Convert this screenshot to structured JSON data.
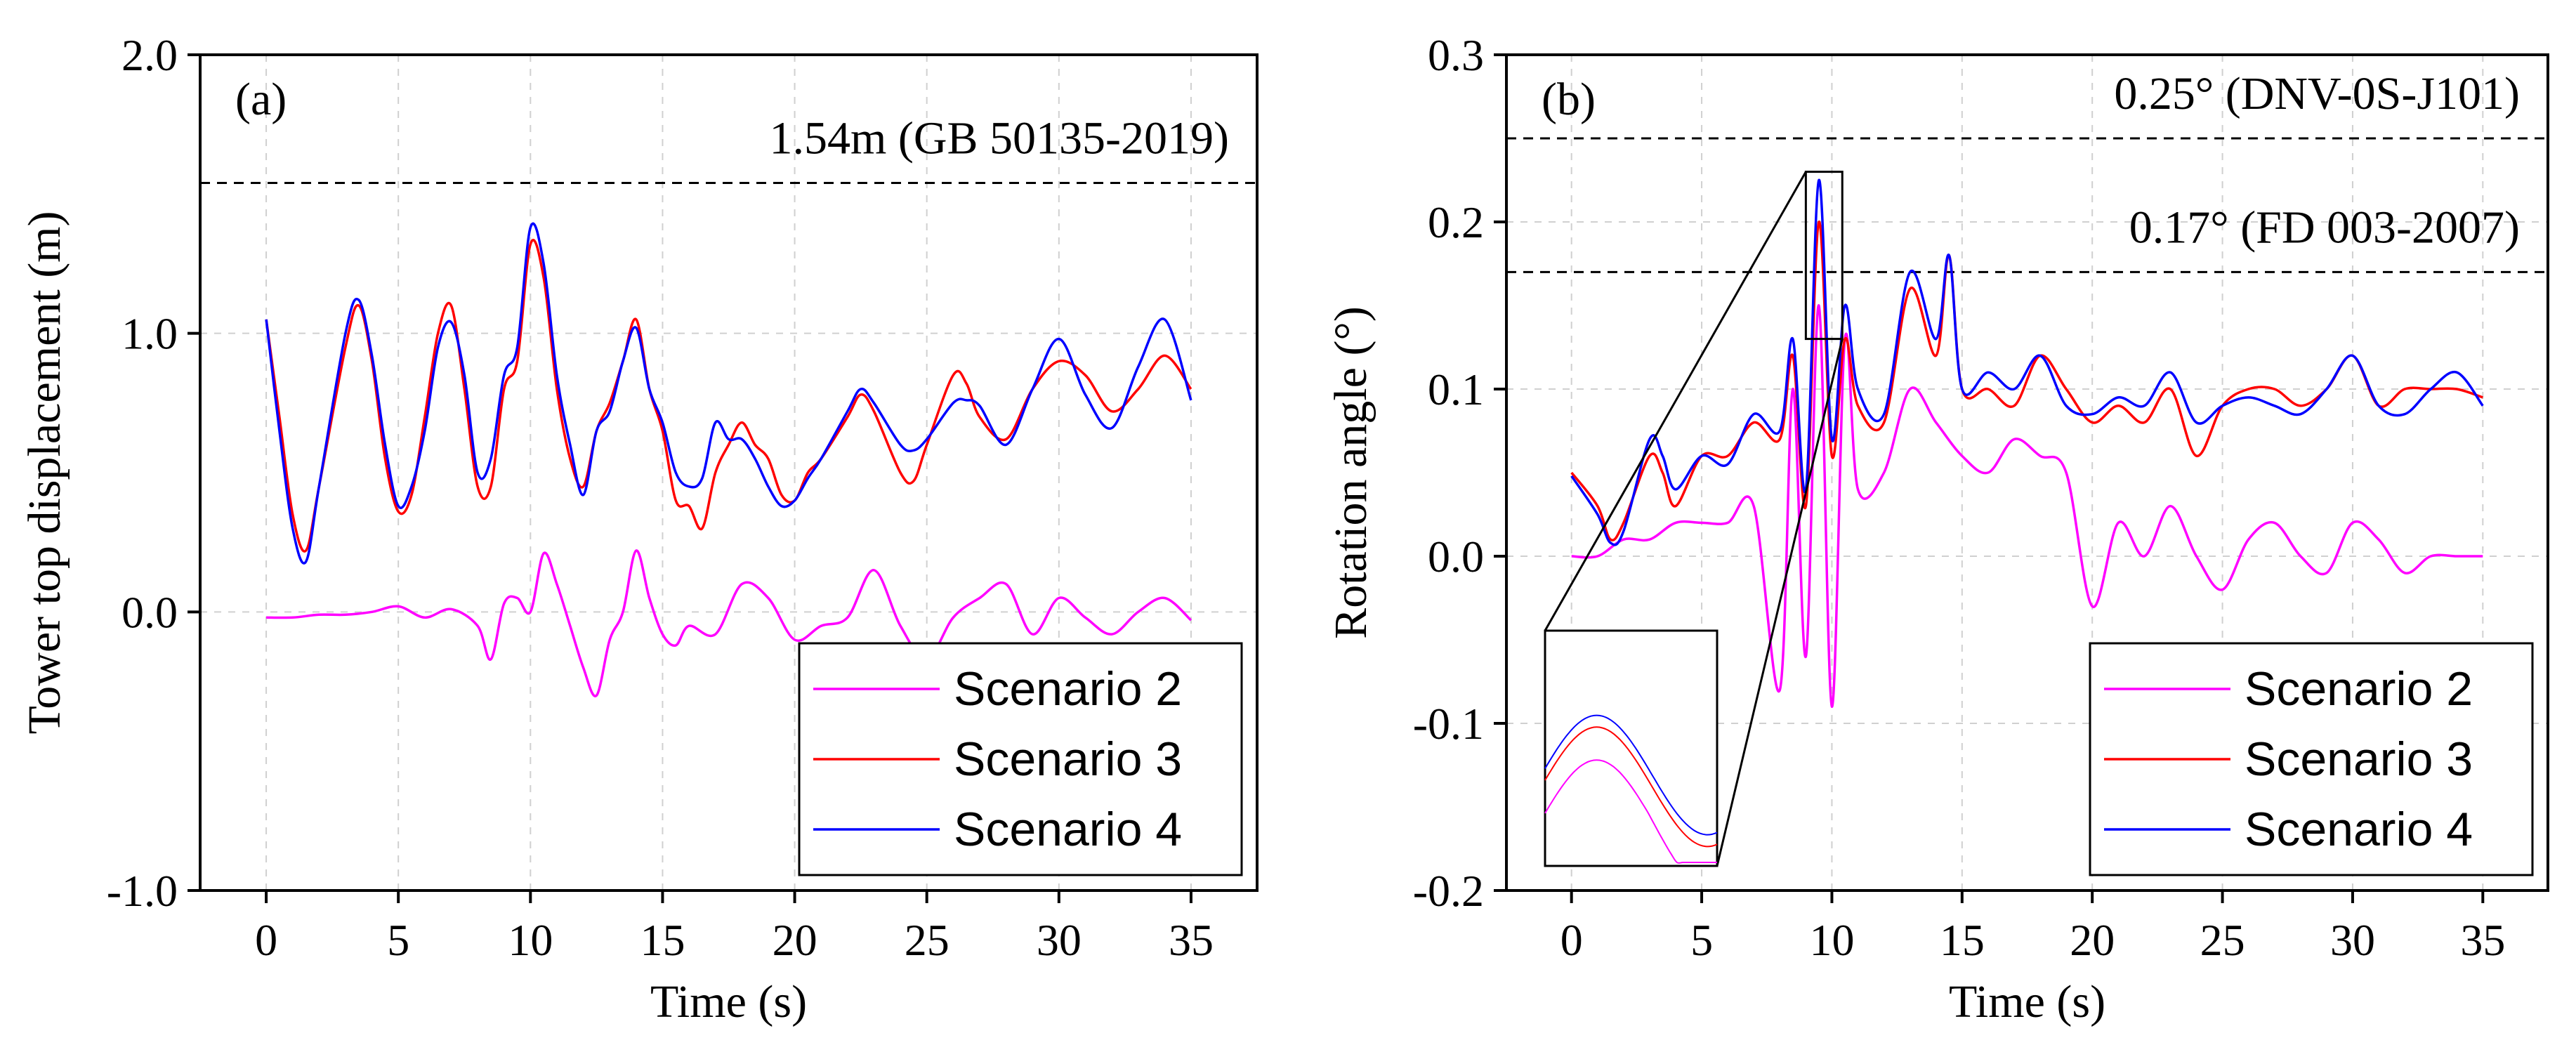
{
  "figure": {
    "background": "#ffffff"
  },
  "colors": {
    "scenario2": "#ff00ff",
    "scenario3": "#ff0000",
    "scenario4": "#0000ff",
    "grid": "#d0d0d0",
    "reference": "#000000"
  },
  "chart_data": [
    {
      "type": "line",
      "panel_label": "(a)",
      "xlabel": "Time (s)",
      "ylabel": "Tower top displacement (m)",
      "xlim": [
        -2.5,
        37.5
      ],
      "ylim": [
        -1.0,
        2.0
      ],
      "xticks": [
        0,
        5,
        10,
        15,
        20,
        25,
        30,
        35
      ],
      "yticks": [
        -1.0,
        0.0,
        1.0,
        2.0
      ],
      "ytick_labels": [
        "-1.0",
        "0.0",
        "1.0",
        "2.0"
      ],
      "grid": true,
      "legend_position": "bottom-right",
      "reference_lines": [
        {
          "y": 1.54,
          "label": "1.54m (GB 50135-2019)"
        }
      ],
      "series": [
        {
          "name": "Scenario 2",
          "color_key": "scenario2",
          "x": [
            0,
            1,
            2,
            3,
            4,
            5,
            6,
            7,
            8,
            8.5,
            9,
            9.5,
            10,
            10.5,
            11,
            11.5,
            12,
            12.5,
            13,
            13.5,
            14,
            14.5,
            15,
            15.5,
            16,
            17,
            18,
            19,
            20,
            21,
            22,
            23,
            24,
            25,
            26,
            27,
            28,
            29,
            30,
            31,
            32,
            33,
            34,
            35
          ],
          "y": [
            -0.02,
            -0.02,
            -0.01,
            -0.01,
            0.0,
            0.02,
            -0.02,
            0.01,
            -0.05,
            -0.17,
            0.03,
            0.05,
            0.0,
            0.21,
            0.1,
            -0.05,
            -0.2,
            -0.3,
            -0.1,
            0.0,
            0.22,
            0.05,
            -0.08,
            -0.12,
            -0.05,
            -0.08,
            0.1,
            0.05,
            -0.1,
            -0.05,
            -0.02,
            0.15,
            -0.05,
            -0.17,
            -0.02,
            0.05,
            0.1,
            -0.08,
            0.05,
            -0.02,
            -0.08,
            0.0,
            0.05,
            -0.03
          ]
        },
        {
          "name": "Scenario 3",
          "color_key": "scenario3",
          "x": [
            0,
            0.5,
            1,
            1.5,
            2,
            3,
            3.5,
            4,
            4.5,
            5,
            5.5,
            6,
            6.5,
            7,
            7.5,
            8,
            8.5,
            9,
            9.5,
            10,
            10.5,
            11,
            11.5,
            12,
            12.5,
            13,
            13.5,
            14,
            14.5,
            15,
            15.5,
            16,
            16.5,
            17,
            17.5,
            18,
            18.5,
            19,
            19.5,
            20,
            20.5,
            21,
            22,
            22.5,
            23,
            24,
            24.5,
            25,
            26,
            26.5,
            27,
            28,
            29,
            30,
            31,
            32,
            33,
            34,
            35
          ],
          "y": [
            1.05,
            0.7,
            0.35,
            0.22,
            0.45,
            0.95,
            1.1,
            0.9,
            0.55,
            0.36,
            0.42,
            0.7,
            1.0,
            1.1,
            0.8,
            0.45,
            0.45,
            0.8,
            0.9,
            1.32,
            1.2,
            0.8,
            0.55,
            0.45,
            0.65,
            0.75,
            0.9,
            1.05,
            0.8,
            0.65,
            0.4,
            0.38,
            0.3,
            0.5,
            0.6,
            0.68,
            0.6,
            0.55,
            0.42,
            0.4,
            0.5,
            0.55,
            0.7,
            0.78,
            0.72,
            0.5,
            0.47,
            0.6,
            0.85,
            0.82,
            0.7,
            0.62,
            0.8,
            0.9,
            0.85,
            0.72,
            0.8,
            0.92,
            0.8
          ]
        },
        {
          "name": "Scenario 4",
          "color_key": "scenario4",
          "x": [
            0,
            0.5,
            1,
            1.5,
            2,
            3,
            3.5,
            4,
            4.5,
            5,
            5.5,
            6,
            6.5,
            7,
            7.5,
            8,
            8.5,
            9,
            9.5,
            10,
            10.5,
            11,
            11.5,
            12,
            12.5,
            13,
            13.5,
            14,
            14.5,
            15,
            15.5,
            16,
            16.5,
            17,
            17.5,
            18,
            18.5,
            19,
            19.5,
            20,
            20.5,
            21,
            22,
            22.5,
            23,
            24,
            24.5,
            25,
            26,
            26.5,
            27,
            28,
            29,
            30,
            31,
            32,
            33,
            34,
            35
          ],
          "y": [
            1.05,
            0.65,
            0.3,
            0.18,
            0.45,
            1.0,
            1.12,
            0.92,
            0.6,
            0.38,
            0.45,
            0.65,
            0.95,
            1.04,
            0.85,
            0.5,
            0.55,
            0.85,
            0.95,
            1.38,
            1.25,
            0.85,
            0.6,
            0.42,
            0.65,
            0.72,
            0.9,
            1.02,
            0.8,
            0.68,
            0.5,
            0.45,
            0.48,
            0.68,
            0.62,
            0.62,
            0.55,
            0.45,
            0.38,
            0.4,
            0.48,
            0.55,
            0.72,
            0.8,
            0.75,
            0.6,
            0.58,
            0.62,
            0.75,
            0.76,
            0.74,
            0.6,
            0.8,
            0.98,
            0.78,
            0.66,
            0.88,
            1.05,
            0.76
          ]
        }
      ]
    },
    {
      "type": "line",
      "panel_label": "(b)",
      "xlabel": "Time (s)",
      "ylabel": "Rotation angle (°)",
      "xlim": [
        -2.5,
        37.5
      ],
      "ylim": [
        -0.2,
        0.3
      ],
      "xticks": [
        0,
        5,
        10,
        15,
        20,
        25,
        30,
        35
      ],
      "yticks": [
        -0.2,
        -0.1,
        0.0,
        0.1,
        0.2,
        0.3
      ],
      "ytick_labels": [
        "-0.2",
        "-0.1",
        "0.0",
        "0.1",
        "0.2",
        "0.3"
      ],
      "grid": true,
      "legend_position": "bottom-right",
      "reference_lines": [
        {
          "y": 0.25,
          "label": "0.25° (DNV-0S-J101)"
        },
        {
          "y": 0.17,
          "label": "0.17° (FD 003-2007)"
        }
      ],
      "zoom_window": {
        "x": [
          9.0,
          10.4
        ],
        "y": [
          0.13,
          0.23
        ]
      },
      "series": [
        {
          "name": "Scenario 2",
          "color_key": "scenario2",
          "x": [
            0,
            1,
            2,
            3,
            4,
            5,
            6,
            7,
            8,
            8.5,
            9,
            9.5,
            10,
            10.5,
            11,
            12,
            13,
            14,
            15,
            16,
            17,
            18,
            19,
            20,
            21,
            22,
            23,
            24,
            25,
            26,
            27,
            28,
            29,
            30,
            31,
            32,
            33,
            34,
            35
          ],
          "y": [
            0.0,
            0.0,
            0.01,
            0.01,
            0.02,
            0.02,
            0.02,
            0.03,
            -0.08,
            0.1,
            -0.06,
            0.15,
            -0.09,
            0.13,
            0.04,
            0.05,
            0.1,
            0.08,
            0.06,
            0.05,
            0.07,
            0.06,
            0.05,
            -0.03,
            0.02,
            0.0,
            0.03,
            0.0,
            -0.02,
            0.01,
            0.02,
            0.0,
            -0.01,
            0.02,
            0.01,
            -0.01,
            0.0,
            0.0,
            0.0
          ]
        },
        {
          "name": "Scenario 3",
          "color_key": "scenario3",
          "x": [
            0,
            1,
            1.5,
            2,
            3,
            3.5,
            4,
            5,
            6,
            7,
            8,
            8.5,
            9,
            9.5,
            10,
            10.5,
            11,
            12,
            13,
            14,
            14.5,
            15,
            16,
            17,
            18,
            19,
            20,
            21,
            22,
            23,
            24,
            25,
            26,
            27,
            28,
            29,
            30,
            31,
            32,
            33,
            34,
            35
          ],
          "y": [
            0.05,
            0.03,
            0.01,
            0.02,
            0.06,
            0.05,
            0.03,
            0.06,
            0.06,
            0.08,
            0.07,
            0.12,
            0.03,
            0.2,
            0.06,
            0.13,
            0.09,
            0.08,
            0.16,
            0.12,
            0.18,
            0.1,
            0.1,
            0.09,
            0.12,
            0.1,
            0.08,
            0.09,
            0.08,
            0.1,
            0.06,
            0.09,
            0.1,
            0.1,
            0.09,
            0.1,
            0.12,
            0.09,
            0.1,
            0.1,
            0.1,
            0.095
          ]
        },
        {
          "name": "Scenario 4",
          "color_key": "scenario4",
          "x": [
            0,
            1,
            1.5,
            2,
            3,
            3.5,
            4,
            5,
            6,
            7,
            8,
            8.5,
            9,
            9.5,
            10,
            10.5,
            11,
            12,
            13,
            14,
            14.5,
            15,
            16,
            17,
            18,
            19,
            20,
            21,
            22,
            23,
            24,
            25,
            26,
            27,
            28,
            29,
            30,
            31,
            32,
            33,
            34,
            35
          ],
          "y": [
            0.048,
            0.025,
            0.008,
            0.015,
            0.07,
            0.06,
            0.04,
            0.06,
            0.055,
            0.085,
            0.075,
            0.13,
            0.04,
            0.225,
            0.07,
            0.15,
            0.1,
            0.085,
            0.17,
            0.13,
            0.18,
            0.1,
            0.11,
            0.1,
            0.12,
            0.09,
            0.085,
            0.095,
            0.09,
            0.11,
            0.08,
            0.09,
            0.095,
            0.09,
            0.085,
            0.1,
            0.12,
            0.09,
            0.085,
            0.1,
            0.11,
            0.09
          ]
        }
      ]
    }
  ]
}
